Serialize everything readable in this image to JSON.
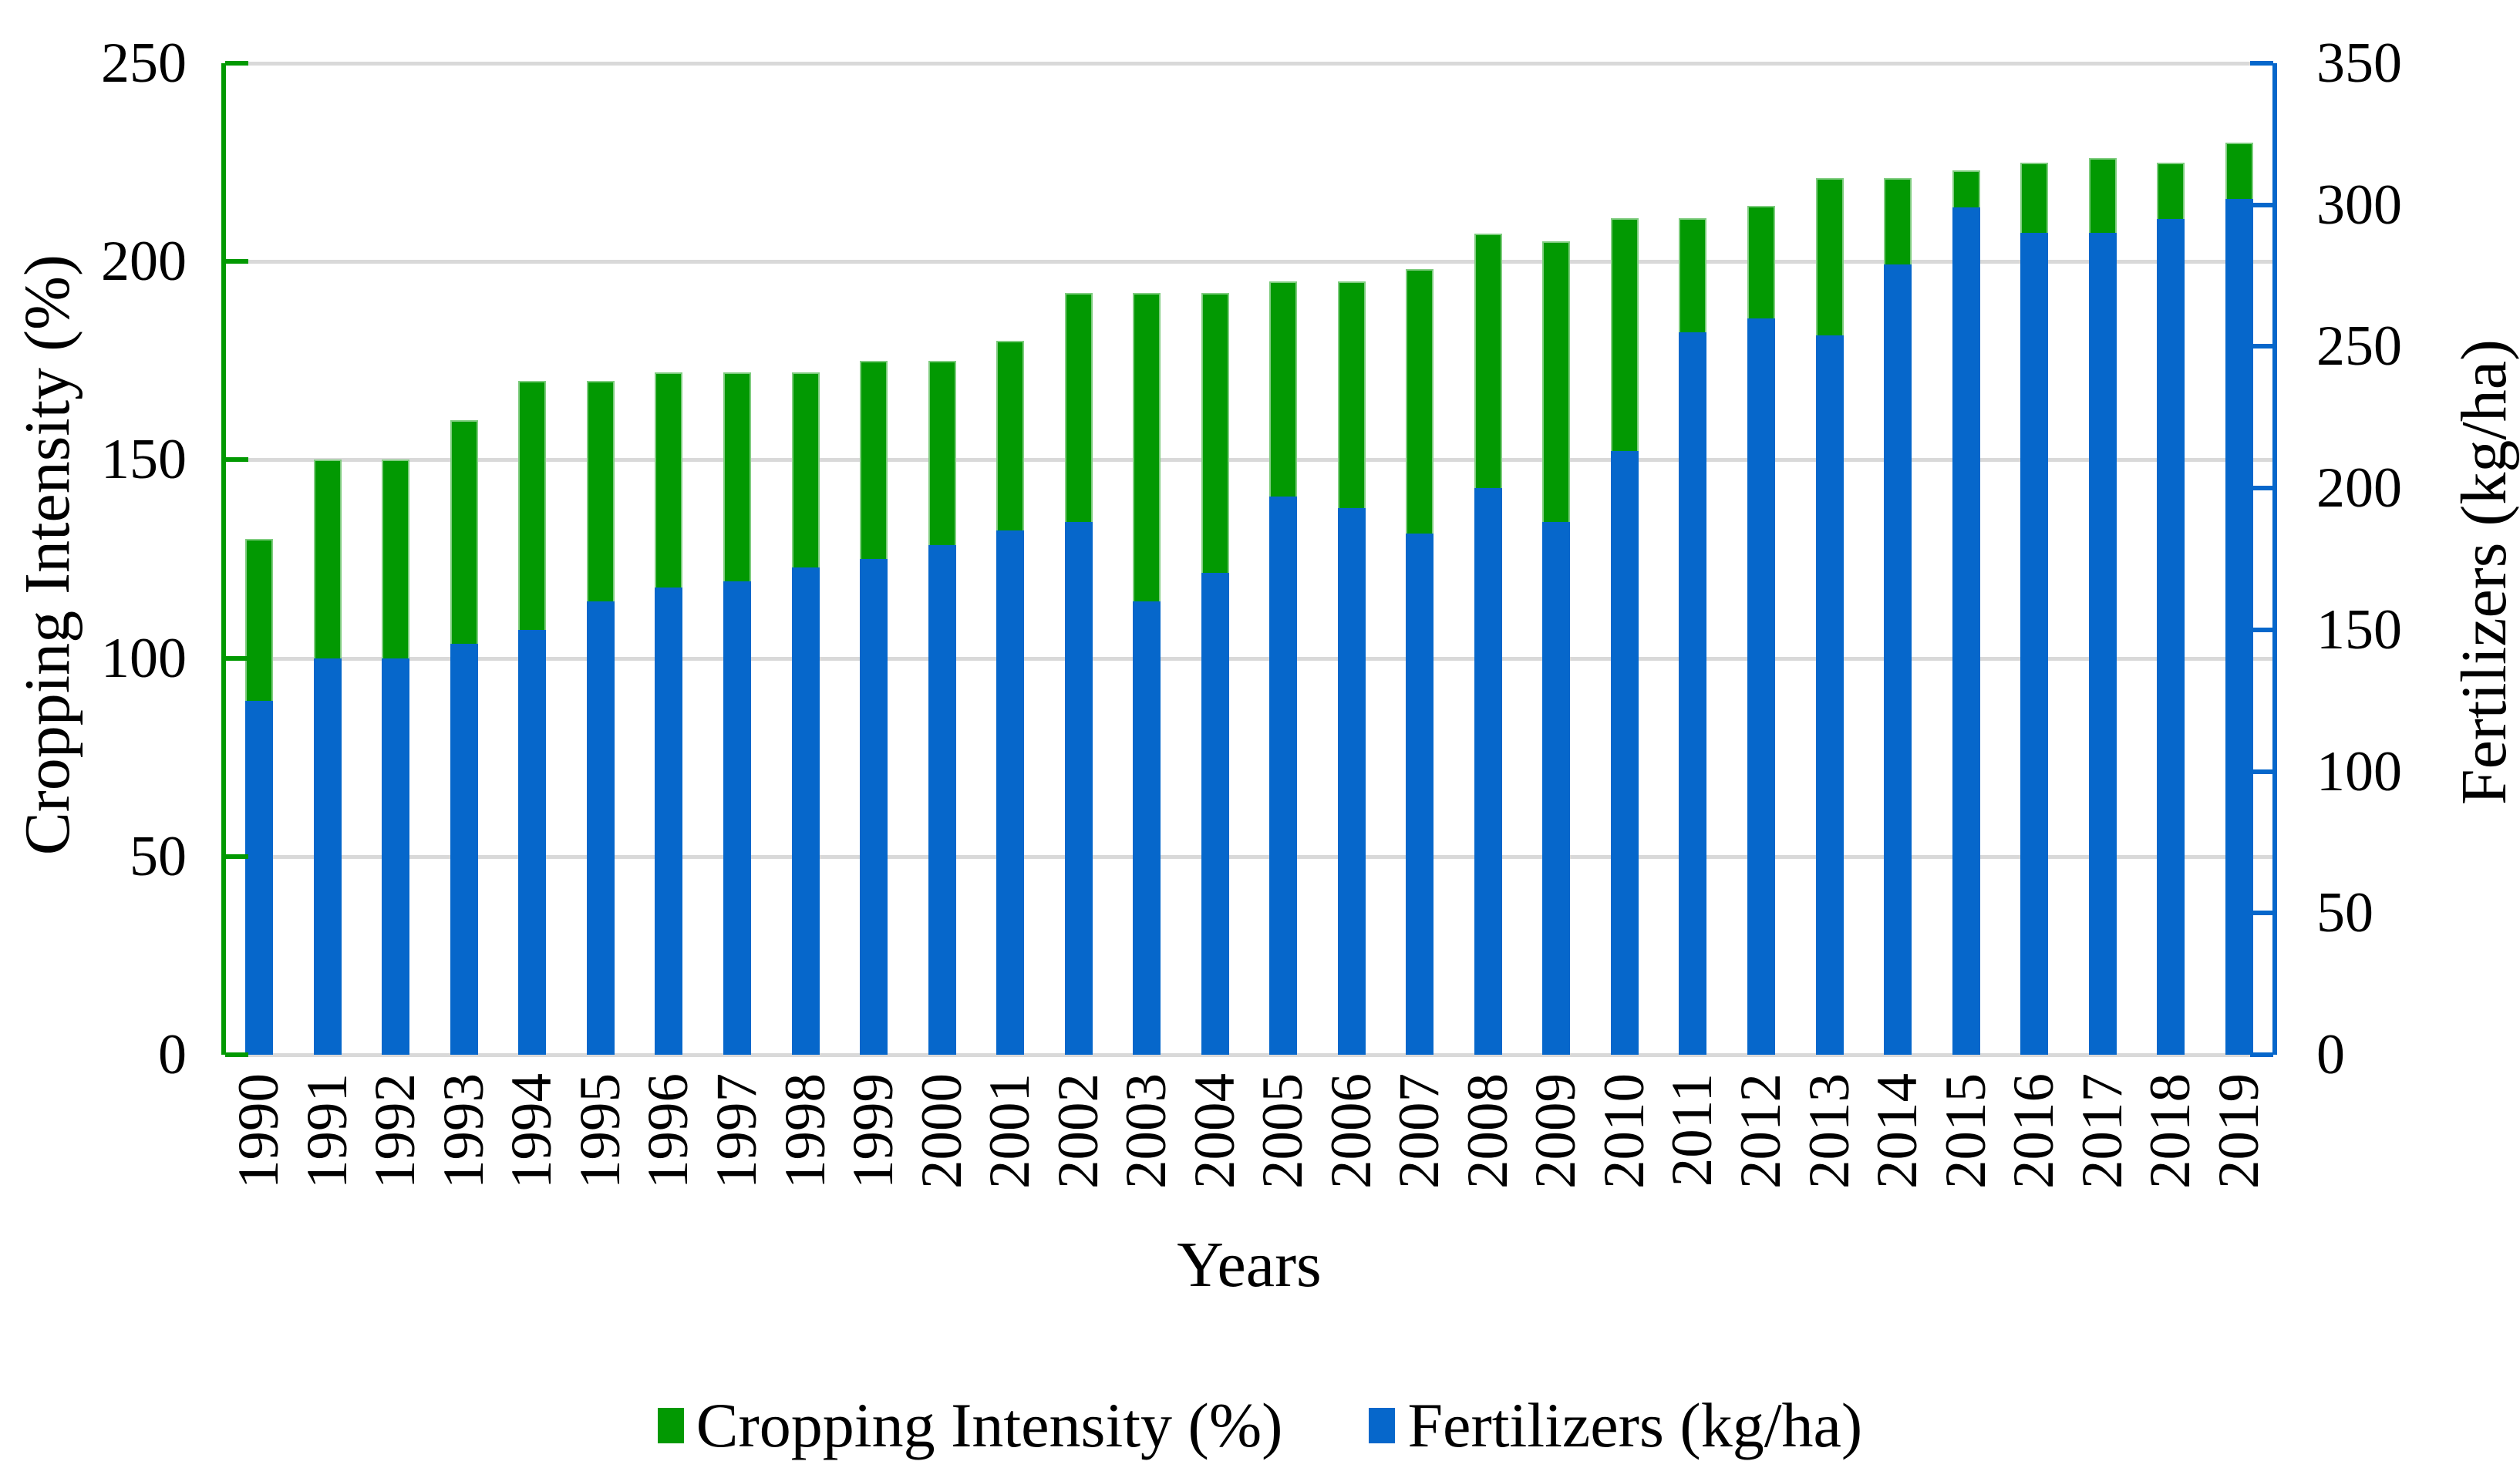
{
  "chart_data": {
    "type": "bar",
    "title": "",
    "categories": [
      "1990",
      "1991",
      "1992",
      "1993",
      "1994",
      "1995",
      "1996",
      "1997",
      "1998",
      "1999",
      "2000",
      "2001",
      "2002",
      "2003",
      "2004",
      "2005",
      "2006",
      "2007",
      "2008",
      "2009",
      "2010",
      "2011",
      "2012",
      "2013",
      "2014",
      "2015",
      "2016",
      "2017",
      "2018",
      "2019"
    ],
    "series": [
      {
        "name": "Cropping Intensity (%)",
        "axis": "left",
        "color": "#029902",
        "values": [
          130,
          150,
          150,
          160,
          170,
          170,
          172,
          172,
          172,
          175,
          175,
          180,
          192,
          192,
          192,
          195,
          195,
          198,
          207,
          205,
          211,
          211,
          214,
          221,
          221,
          223,
          225,
          226,
          225,
          230
        ]
      },
      {
        "name": "Fertilizers (kg/ha)",
        "axis": "right",
        "color": "#0667cb",
        "values": [
          125,
          140,
          140,
          145,
          150,
          160,
          165,
          167,
          172,
          175,
          180,
          185,
          188,
          160,
          170,
          197,
          193,
          184,
          200,
          188,
          213,
          255,
          260,
          254,
          279,
          299,
          290,
          290,
          295,
          302
        ]
      }
    ],
    "xlabel": "Years",
    "y_left": {
      "label": "Cropping Intensity (%)",
      "min": 0,
      "max": 250,
      "ticks": [
        0,
        50,
        100,
        150,
        200,
        250
      ],
      "axis_color": "#029902"
    },
    "y_right": {
      "label": "Fertilizers (kg/ha)",
      "min": 0,
      "max": 350,
      "ticks": [
        0,
        50,
        100,
        150,
        200,
        250,
        300,
        350
      ],
      "axis_color": "#0667cb"
    },
    "grid": "horizontal-on",
    "gridline_color": "#d9d9d9",
    "legend_position": "bottom",
    "legend": [
      {
        "label": "Cropping Intensity (%)",
        "color": "#029902"
      },
      {
        "label": "Fertilizers (kg/ha)",
        "color": "#0667cb"
      }
    ]
  }
}
